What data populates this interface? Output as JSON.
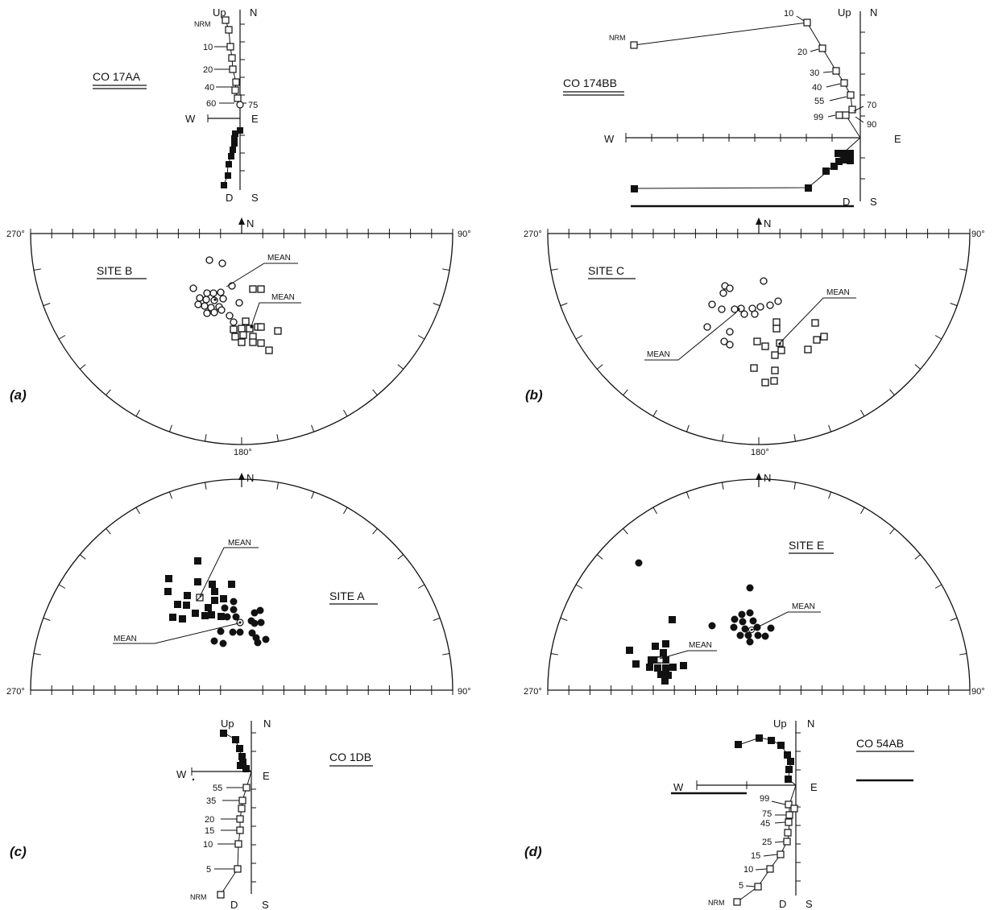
{
  "common": {
    "up": "Up",
    "down": "D",
    "north": "N",
    "south": "S",
    "east": "E",
    "west": "W",
    "mean": "MEAN",
    "nrm": "NRM",
    "deg_270": "270°",
    "deg_90": "90°",
    "deg_180": "180°"
  },
  "panels": {
    "a": {
      "letter": "(a)",
      "sample": "CO 17AA",
      "site": "SITE B",
      "steps": [
        "10",
        "20",
        "40",
        "60",
        "75"
      ],
      "hemisphere": "lower"
    },
    "b": {
      "letter": "(b)",
      "sample": "CO 174BB",
      "site": "SITE C",
      "steps": [
        "10",
        "20",
        "30",
        "40",
        "55",
        "70",
        "99",
        "90"
      ],
      "hemisphere": "lower"
    },
    "c": {
      "letter": "(c)",
      "sample": "CO 1DB",
      "site": "SITE A",
      "steps": [
        "55",
        "35",
        "20",
        "15",
        "10",
        "5"
      ],
      "hemisphere": "upper"
    },
    "d": {
      "letter": "(d)",
      "sample": "CO 54AB",
      "site": "SITE E",
      "steps": [
        "99",
        "75",
        "45",
        "25",
        "15",
        "10",
        "5"
      ],
      "hemisphere": "upper"
    }
  },
  "colors": {
    "ink": "#111111",
    "paper": "#ffffff"
  }
}
